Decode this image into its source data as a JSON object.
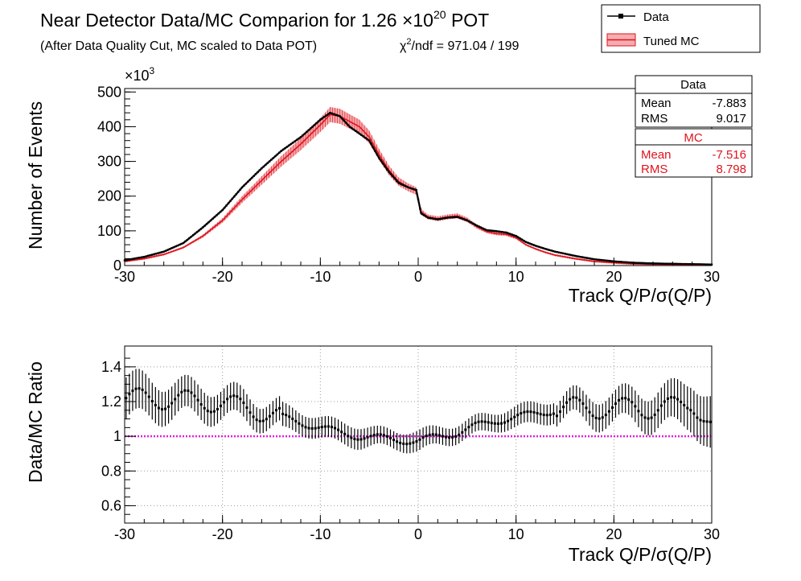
{
  "chart_data": [
    {
      "type": "line",
      "title_main": "Near Detector Data/MC Comparion for 1.26 ×10",
      "title_exp": "20",
      "title_tail": " POT",
      "subtitle": "(After Data Quality Cut, MC scaled to Data POT)",
      "chi2_sym": "χ",
      "chi2_exp": "2",
      "chi2_rest": "/ndf = 971.04 / 199",
      "xlabel_main": "Track Q/P/",
      "xlabel_sigma": "σ",
      "xlabel_tail": "(Q/P)",
      "ylabel": "Number of Events",
      "y_multiplier_base": "×10",
      "y_multiplier_exp": "3",
      "xlim": [
        -30,
        30
      ],
      "ylim": [
        0,
        510
      ],
      "x_ticks": [
        -30,
        -20,
        -10,
        0,
        10,
        20,
        30
      ],
      "y_ticks": [
        0,
        100,
        200,
        300,
        400,
        500
      ],
      "legend": [
        {
          "label": "Data",
          "color": "#000000",
          "style": "line-marker"
        },
        {
          "label": "Tuned MC",
          "color": "#e0141e",
          "style": "band"
        }
      ],
      "series": [
        {
          "name": "Data",
          "color": "#000000",
          "x": [
            -30,
            -28,
            -26,
            -24,
            -22,
            -20,
            -18,
            -16,
            -14,
            -12,
            -10,
            -9,
            -8,
            -7,
            -6,
            -5,
            -4,
            -3,
            -2,
            -1,
            -0.2,
            0.3,
            1,
            2,
            3,
            4,
            5,
            6,
            7,
            8,
            9,
            10,
            11,
            12,
            13,
            14,
            16,
            18,
            20,
            22,
            24,
            26,
            28,
            30
          ],
          "values": [
            15,
            25,
            40,
            65,
            110,
            160,
            225,
            280,
            330,
            370,
            420,
            440,
            430,
            400,
            380,
            360,
            310,
            270,
            238,
            225,
            218,
            150,
            138,
            133,
            138,
            140,
            130,
            115,
            102,
            99,
            95,
            85,
            68,
            57,
            48,
            40,
            28,
            18,
            12,
            8,
            6,
            5,
            4,
            3
          ]
        },
        {
          "name": "Tuned MC",
          "color": "#e0141e",
          "x": [
            -30,
            -28,
            -26,
            -24,
            -22,
            -20,
            -18,
            -16,
            -14,
            -12,
            -10,
            -9,
            -8,
            -7,
            -6,
            -5,
            -4,
            -3,
            -2,
            -1,
            -0.2,
            0.3,
            1,
            2,
            3,
            4,
            5,
            6,
            7,
            8,
            9,
            10,
            11,
            12,
            13,
            14,
            16,
            18,
            20,
            22,
            24,
            26,
            28,
            30
          ],
          "values": [
            12,
            20,
            32,
            52,
            85,
            130,
            190,
            245,
            300,
            350,
            405,
            435,
            430,
            415,
            400,
            370,
            320,
            275,
            242,
            225,
            215,
            155,
            140,
            135,
            140,
            143,
            132,
            112,
            98,
            92,
            90,
            80,
            60,
            48,
            38,
            30,
            20,
            12,
            8,
            5,
            4,
            3,
            2,
            2
          ],
          "band_fraction": 0.05
        }
      ],
      "stats": {
        "data": {
          "title": "Data",
          "mean_label": "Mean",
          "mean": "-7.883",
          "rms_label": "RMS",
          "rms": "9.017",
          "color": "#000000"
        },
        "mc": {
          "title": "MC",
          "mean_label": "Mean",
          "mean": "-7.516",
          "rms_label": "RMS",
          "rms": "8.798",
          "color": "#e0141e"
        }
      }
    },
    {
      "type": "scatter",
      "ylabel": "Data/MC Ratio",
      "xlabel_main": "Track Q/P/",
      "xlabel_sigma": "σ",
      "xlabel_tail": "(Q/P)",
      "xlim": [
        -30,
        30
      ],
      "ylim": [
        0.5,
        1.52
      ],
      "x_ticks": [
        -30,
        -20,
        -10,
        0,
        10,
        20,
        30
      ],
      "y_ticks": [
        0.6,
        0.8,
        1,
        1.2,
        1.4
      ],
      "grid": true,
      "reference_line": {
        "y": 1,
        "color": "#e020e0"
      },
      "series": [
        {
          "name": "Data/MC",
          "color": "#000000",
          "x": [
            -30,
            -28,
            -26,
            -24,
            -22,
            -20,
            -18,
            -16,
            -14,
            -12,
            -10,
            -8,
            -6,
            -4,
            -2,
            0,
            2,
            4,
            6,
            8,
            10,
            12,
            14,
            16,
            18,
            20,
            22,
            24,
            26,
            28,
            30
          ],
          "values": [
            1.22,
            1.22,
            1.21,
            1.21,
            1.2,
            1.19,
            1.17,
            1.14,
            1.11,
            1.08,
            1.05,
            1.02,
            1.0,
            0.99,
            0.98,
            0.97,
            1.0,
            1.02,
            1.06,
            1.09,
            1.11,
            1.13,
            1.15,
            1.17,
            1.16,
            1.15,
            1.18,
            1.15,
            1.17,
            1.2,
            1.05
          ],
          "errors": [
            0.12,
            0.11,
            0.1,
            0.09,
            0.09,
            0.08,
            0.08,
            0.07,
            0.07,
            0.06,
            0.06,
            0.06,
            0.06,
            0.05,
            0.05,
            0.06,
            0.05,
            0.05,
            0.05,
            0.05,
            0.06,
            0.06,
            0.06,
            0.07,
            0.08,
            0.08,
            0.09,
            0.1,
            0.11,
            0.13,
            0.15
          ]
        }
      ]
    }
  ]
}
